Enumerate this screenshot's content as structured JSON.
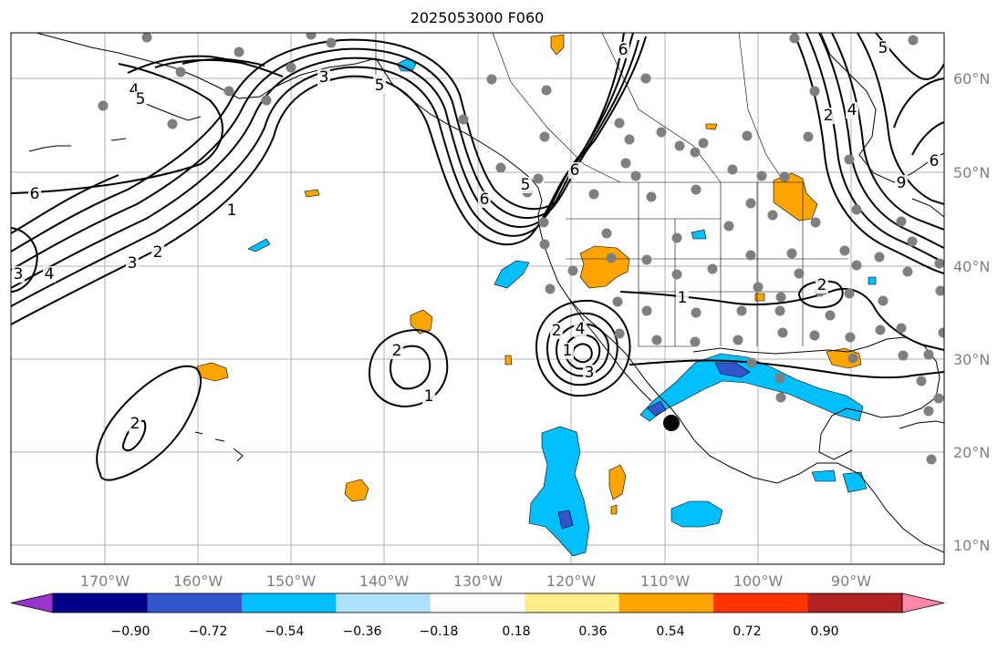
{
  "title": "2025053000 F060",
  "lon_labels": [
    "170°W",
    "160°W",
    "150°W",
    "140°W",
    "130°W",
    "120°W",
    "110°W",
    "100°W",
    "90°W"
  ],
  "lat_labels": [
    "60°N",
    "50°N",
    "40°N",
    "30°N",
    "20°N",
    "10°N"
  ],
  "colorbar": {
    "tick_labels": [
      "−0.90",
      "−0.72",
      "−0.54",
      "−0.36",
      "−0.18",
      "0.18",
      "0.36",
      "0.54",
      "0.72",
      "0.90"
    ],
    "colors": [
      "#9933cc",
      "#000088",
      "#3355cc",
      "#00bfff",
      "#b0e0ff",
      "#ffffff",
      "#ffee88",
      "#ffa500",
      "#ff3300",
      "#b22222",
      "#ff88aa"
    ]
  },
  "contour_labels": [
    "4",
    "5",
    "6",
    "3",
    "2",
    "1",
    "3",
    "4",
    "6",
    "5",
    "3",
    "5",
    "6",
    "6",
    "9",
    "6",
    "2",
    "4",
    "5",
    "1",
    "2",
    "2",
    "4",
    "3",
    "1",
    "2",
    "1",
    "2"
  ],
  "shading_colors": {
    "positive": "#ffa500",
    "negative": "#00bfff",
    "strong_negative": "#3355cc"
  }
}
